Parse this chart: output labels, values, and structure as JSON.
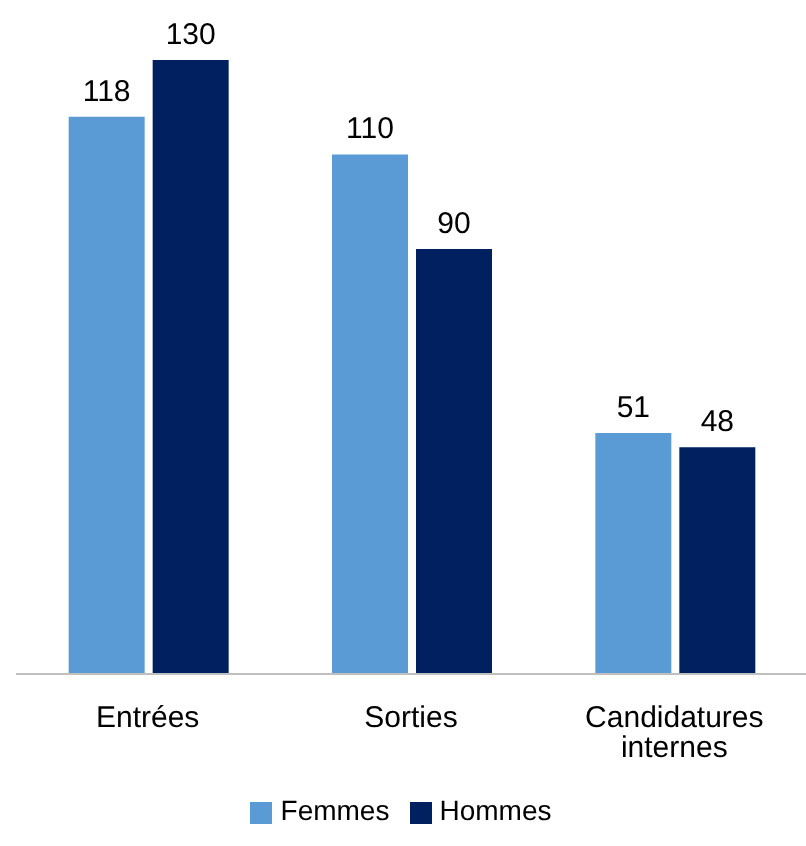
{
  "chart_data": {
    "type": "bar",
    "categories": [
      "Entrées",
      "Sorties",
      "Candidatures internes"
    ],
    "series": [
      {
        "name": "Femmes",
        "color": "#5b9bd5",
        "values": [
          118,
          110,
          51
        ]
      },
      {
        "name": "Hommes",
        "color": "#002060",
        "values": [
          130,
          90,
          48
        ]
      }
    ],
    "data_labels": true,
    "legend": "bottom",
    "grid": false
  }
}
